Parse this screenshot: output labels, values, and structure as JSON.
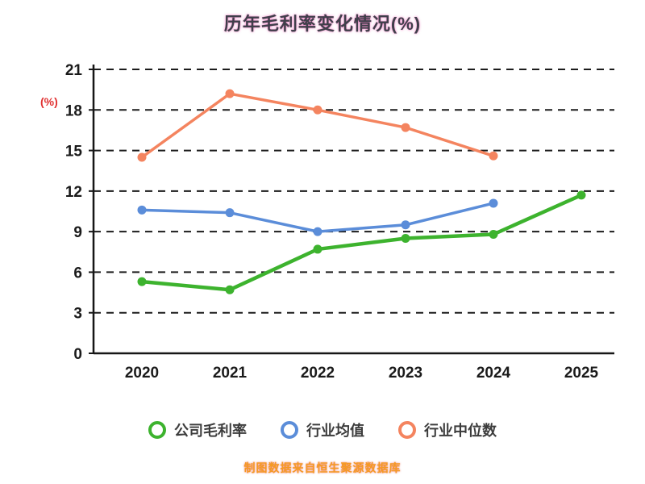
{
  "chart_data": {
    "type": "line",
    "title": "历年毛利率变化情况(%)",
    "ylabel": "(%)",
    "categories": [
      "2020",
      "2021",
      "2022",
      "2023",
      "2024",
      "2025"
    ],
    "series": [
      {
        "name": "公司毛利率",
        "color": "#3db32e",
        "values": [
          5.3,
          4.7,
          7.7,
          8.5,
          8.8,
          11.7
        ]
      },
      {
        "name": "行业均值",
        "color": "#5b8dd9",
        "values": [
          10.6,
          10.4,
          9.0,
          9.5,
          11.1,
          null
        ]
      },
      {
        "name": "行业中位数",
        "color": "#f4845f",
        "values": [
          14.5,
          19.2,
          18.0,
          16.7,
          14.6,
          null
        ]
      }
    ],
    "ylim": [
      0,
      21
    ],
    "ytick_step": 3,
    "grid": "dashed horizontal",
    "legend_position": "bottom",
    "axis_color": "#161616",
    "tick_label_color": "#1a1a1a"
  },
  "footer": {
    "source_note": "制图数据来自恒生聚源数据库"
  }
}
